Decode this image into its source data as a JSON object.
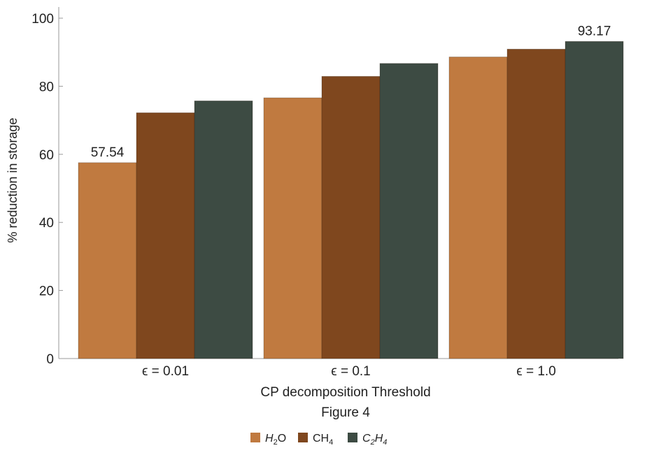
{
  "chart_data": {
    "type": "bar",
    "categories": [
      "ϵ = 0.01",
      "ϵ = 0.1",
      "ϵ = 1.0"
    ],
    "series": [
      {
        "name": "H2O",
        "values": [
          57.54,
          76.6,
          88.6
        ],
        "color": "#C07A40"
      },
      {
        "name": "CH4",
        "values": [
          72.2,
          82.9,
          90.9
        ],
        "color": "#7F471E"
      },
      {
        "name": "C2H4",
        "values": [
          75.7,
          86.7,
          93.17
        ],
        "color": "#3D4B43"
      }
    ],
    "data_labels": [
      {
        "series": 0,
        "category": 0,
        "text": "57.54"
      },
      {
        "series": 2,
        "category": 2,
        "text": "93.17"
      }
    ],
    "ylabel": "% reduction in storage",
    "xlabel": "CP decomposition Threshold",
    "caption": "Figure 4",
    "ylim": [
      0,
      100
    ],
    "yticks": [
      "0",
      "20",
      "40",
      "60",
      "80",
      "100"
    ],
    "ytick_values": [
      0,
      20,
      40,
      60,
      80,
      100
    ],
    "grid": false,
    "legend_position": "bottom-center"
  }
}
